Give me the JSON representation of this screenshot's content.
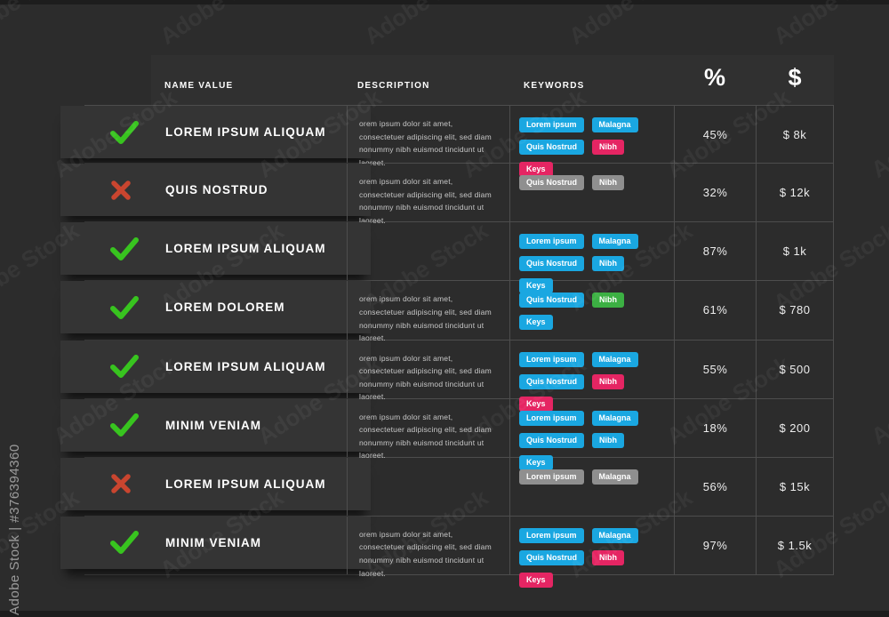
{
  "watermark": {
    "tile_text": "Adobe Stock",
    "id_text": "Adobe Stock | #376394360"
  },
  "header": {
    "columns": [
      "NAME VALUE",
      "DESCRIPTION",
      "KEYWORDS",
      "%",
      "$"
    ]
  },
  "colors": {
    "cyan": "#1aa7e1",
    "pink": "#e52563",
    "gray": "#8f8f8f",
    "green": "#3cb043",
    "check": "#38c41f",
    "cross": "#c9452f"
  },
  "rows": [
    {
      "status": "check",
      "name": "LOREM IPSUM ALIQUAM",
      "description": "orem ipsum dolor sit amet, consectetuer adipiscing elit, sed diam nonummy nibh euismod tincidunt ut laoreet.",
      "keywords": [
        {
          "label": "Lorem ipsum",
          "color": "cyan"
        },
        {
          "label": "Malagna",
          "color": "cyan"
        },
        {
          "label": "Quis Nostrud",
          "color": "cyan"
        },
        {
          "label": "Nibh",
          "color": "pink"
        },
        {
          "label": "Keys",
          "color": "pink"
        }
      ],
      "percent": "45%",
      "price": "$ 8k"
    },
    {
      "status": "cross",
      "name": "QUIS NOSTRUD",
      "description": "orem ipsum dolor sit amet, consectetuer adipiscing elit, sed diam nonummy nibh euismod tincidunt ut laoreet.",
      "keywords": [
        {
          "label": "Quis Nostrud",
          "color": "gray"
        },
        {
          "label": "Nibh",
          "color": "gray"
        }
      ],
      "percent": "32%",
      "price": "$ 12k"
    },
    {
      "status": "check",
      "name": "LOREM IPSUM ALIQUAM",
      "description": "",
      "keywords": [
        {
          "label": "Lorem ipsum",
          "color": "cyan"
        },
        {
          "label": "Malagna",
          "color": "cyan"
        },
        {
          "label": "Quis Nostrud",
          "color": "cyan"
        },
        {
          "label": "Nibh",
          "color": "cyan"
        },
        {
          "label": "Keys",
          "color": "cyan"
        }
      ],
      "percent": "87%",
      "price": "$ 1k"
    },
    {
      "status": "check",
      "name": "LOREM DOLOREM",
      "description": "orem ipsum dolor sit amet, consectetuer adipiscing elit, sed diam nonummy nibh euismod tincidunt ut laoreet.",
      "keywords": [
        {
          "label": "Quis Nostrud",
          "color": "cyan"
        },
        {
          "label": "Nibh",
          "color": "green"
        },
        {
          "label": "Keys",
          "color": "cyan"
        }
      ],
      "percent": "61%",
      "price": "$ 780"
    },
    {
      "status": "check",
      "name": "LOREM IPSUM ALIQUAM",
      "description": "orem ipsum dolor sit amet, consectetuer adipiscing elit, sed diam nonummy nibh euismod tincidunt ut laoreet.",
      "keywords": [
        {
          "label": "Lorem ipsum",
          "color": "cyan"
        },
        {
          "label": "Malagna",
          "color": "cyan"
        },
        {
          "label": "Quis Nostrud",
          "color": "cyan"
        },
        {
          "label": "Nibh",
          "color": "pink"
        },
        {
          "label": "Keys",
          "color": "pink"
        }
      ],
      "percent": "55%",
      "price": "$ 500"
    },
    {
      "status": "check",
      "name": "MINIM VENIAM",
      "description": "orem ipsum dolor sit amet, consectetuer adipiscing elit, sed diam nonummy nibh euismod tincidunt ut laoreet.",
      "keywords": [
        {
          "label": "Lorem ipsum",
          "color": "cyan"
        },
        {
          "label": "Malagna",
          "color": "cyan"
        },
        {
          "label": "Quis Nostrud",
          "color": "cyan"
        },
        {
          "label": "Nibh",
          "color": "cyan"
        },
        {
          "label": "Keys",
          "color": "cyan"
        }
      ],
      "percent": "18%",
      "price": "$ 200"
    },
    {
      "status": "cross",
      "name": "LOREM IPSUM ALIQUAM",
      "description": "",
      "keywords": [
        {
          "label": "Lorem ipsum",
          "color": "gray"
        },
        {
          "label": "Malagna",
          "color": "gray"
        }
      ],
      "percent": "56%",
      "price": "$ 15k"
    },
    {
      "status": "check",
      "name": "MINIM VENIAM",
      "description": "orem ipsum dolor sit amet, consectetuer adipiscing elit, sed diam nonummy nibh euismod tincidunt ut laoreet.",
      "keywords": [
        {
          "label": "Lorem ipsum",
          "color": "cyan"
        },
        {
          "label": "Malagna",
          "color": "cyan"
        },
        {
          "label": "Quis Nostrud",
          "color": "cyan"
        },
        {
          "label": "Nibh",
          "color": "pink"
        },
        {
          "label": "Keys",
          "color": "pink"
        }
      ],
      "percent": "97%",
      "price": "$ 1.5k"
    }
  ]
}
